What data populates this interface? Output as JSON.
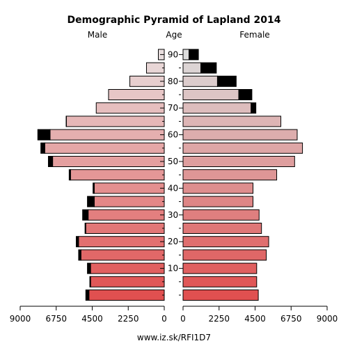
{
  "chart_data": {
    "type": "population-pyramid",
    "title": "Demographic Pyramid of Lapland 2014",
    "male_label": "Male",
    "female_label": "Female",
    "age_label": "Age",
    "footer": "www.iz.sk/RFI1D7",
    "age_ticks": [
      "10",
      "20",
      "30",
      "40",
      "50",
      "60",
      "70",
      "80",
      "90"
    ],
    "x_ticks_male": [
      "9000",
      "6750",
      "4500",
      "2250",
      "0"
    ],
    "x_ticks_female": [
      "0",
      "2250",
      "4500",
      "6750",
      "9000"
    ],
    "xlim": [
      0,
      9000
    ],
    "age_groups": [
      "0-4",
      "5-9",
      "10-14",
      "15-19",
      "20-24",
      "25-29",
      "30-34",
      "35-39",
      "40-44",
      "45-49",
      "50-54",
      "55-59",
      "60-64",
      "65-69",
      "70-74",
      "75-79",
      "80-84",
      "85-89",
      "90+"
    ],
    "series": [
      {
        "name": "Male",
        "values": [
          4900,
          4650,
          4800,
          5350,
          5500,
          4950,
          5100,
          4800,
          4450,
          5940,
          7240,
          7710,
          7900,
          6130,
          4250,
          3480,
          2150,
          1110,
          370
        ],
        "excess": [
          0,
          0,
          0,
          0,
          0,
          0,
          0,
          0,
          0,
          0,
          0,
          0,
          0,
          0,
          0,
          0,
          0,
          0,
          0
        ]
      },
      {
        "name": "Female",
        "values": [
          4700,
          4600,
          4600,
          5200,
          5350,
          4900,
          4750,
          4370,
          4370,
          5850,
          6970,
          7460,
          7130,
          6110,
          4550,
          4300,
          3320,
          2080,
          960
        ]
      }
    ]
  }
}
